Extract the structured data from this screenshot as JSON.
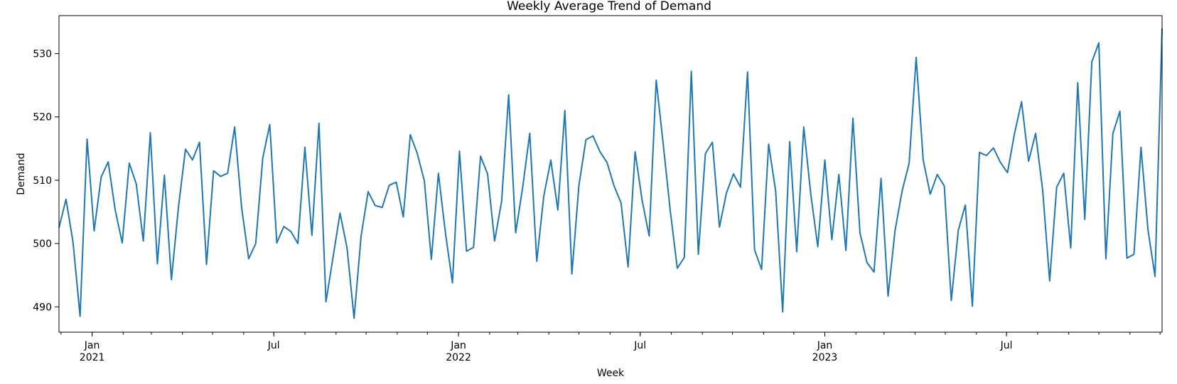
{
  "chart_data": {
    "type": "line",
    "title": "Weekly Average Trend of Demand",
    "xlabel": "Week",
    "ylabel": "Demand",
    "x_start": "2020-11-29",
    "x_freq": "weekly",
    "ylim": [
      486,
      536
    ],
    "y_ticks": [
      490,
      500,
      510,
      520,
      530
    ],
    "x_major_ticks": [
      {
        "date": "2021-01-01",
        "label": "Jan",
        "sublabel": "2021"
      },
      {
        "date": "2021-07-01",
        "label": "Jul",
        "sublabel": ""
      },
      {
        "date": "2022-01-01",
        "label": "Jan",
        "sublabel": "2022"
      },
      {
        "date": "2022-07-01",
        "label": "Jul",
        "sublabel": ""
      },
      {
        "date": "2023-01-01",
        "label": "Jan",
        "sublabel": "2023"
      },
      {
        "date": "2023-07-01",
        "label": "Jul",
        "sublabel": ""
      }
    ],
    "grid": false,
    "legend": "none",
    "series": [
      {
        "color": "#1f77b4",
        "values": [
          502.5,
          507.0,
          500.2,
          488.5,
          516.5,
          502.0,
          510.5,
          512.9,
          505.3,
          500.1,
          512.7,
          509.4,
          500.4,
          517.5,
          496.8,
          510.8,
          494.3,
          505.7,
          514.9,
          513.2,
          516.0,
          496.7,
          511.5,
          510.6,
          511.1,
          518.4,
          505.6,
          497.6,
          500.0,
          513.5,
          518.8,
          500.1,
          502.7,
          501.9,
          500.0,
          515.2,
          501.3,
          519.0,
          490.8,
          497.8,
          504.8,
          499.3,
          488.2,
          501.2,
          508.2,
          506.0,
          505.7,
          509.2,
          509.7,
          504.2,
          517.2,
          514.2,
          509.9,
          497.5,
          511.1,
          501.7,
          493.8,
          514.6,
          498.8,
          499.4,
          513.8,
          511.0,
          500.4,
          506.7,
          523.5,
          501.7,
          508.9,
          517.4,
          497.2,
          507.5,
          513.2,
          505.3,
          521.0,
          495.2,
          509.2,
          516.4,
          517.0,
          514.5,
          512.8,
          509.1,
          506.4,
          496.3,
          514.5,
          506.8,
          501.2,
          525.8,
          515.7,
          505.2,
          496.1,
          497.8,
          527.2,
          498.3,
          514.2,
          516.0,
          502.6,
          508.0,
          511.0,
          508.9,
          527.1,
          499.0,
          495.9,
          515.7,
          508.3,
          489.2,
          516.1,
          498.7,
          518.4,
          507.8,
          499.5,
          513.2,
          500.6,
          510.9,
          498.9,
          519.8,
          501.7,
          497.0,
          495.5,
          510.3,
          491.7,
          502.1,
          508.3,
          512.7,
          529.4,
          513.2,
          507.8,
          510.9,
          509.1,
          491.0,
          502.1,
          506.1,
          490.1,
          514.4,
          513.9,
          515.1,
          512.8,
          511.2,
          517.4,
          522.4,
          513.0,
          517.4,
          508.5,
          494.1,
          508.9,
          511.1,
          499.3,
          525.4,
          503.8,
          528.7,
          531.7,
          497.6,
          517.4,
          520.9,
          497.7,
          498.3,
          515.2,
          502.1,
          494.8,
          534.0
        ]
      }
    ]
  }
}
